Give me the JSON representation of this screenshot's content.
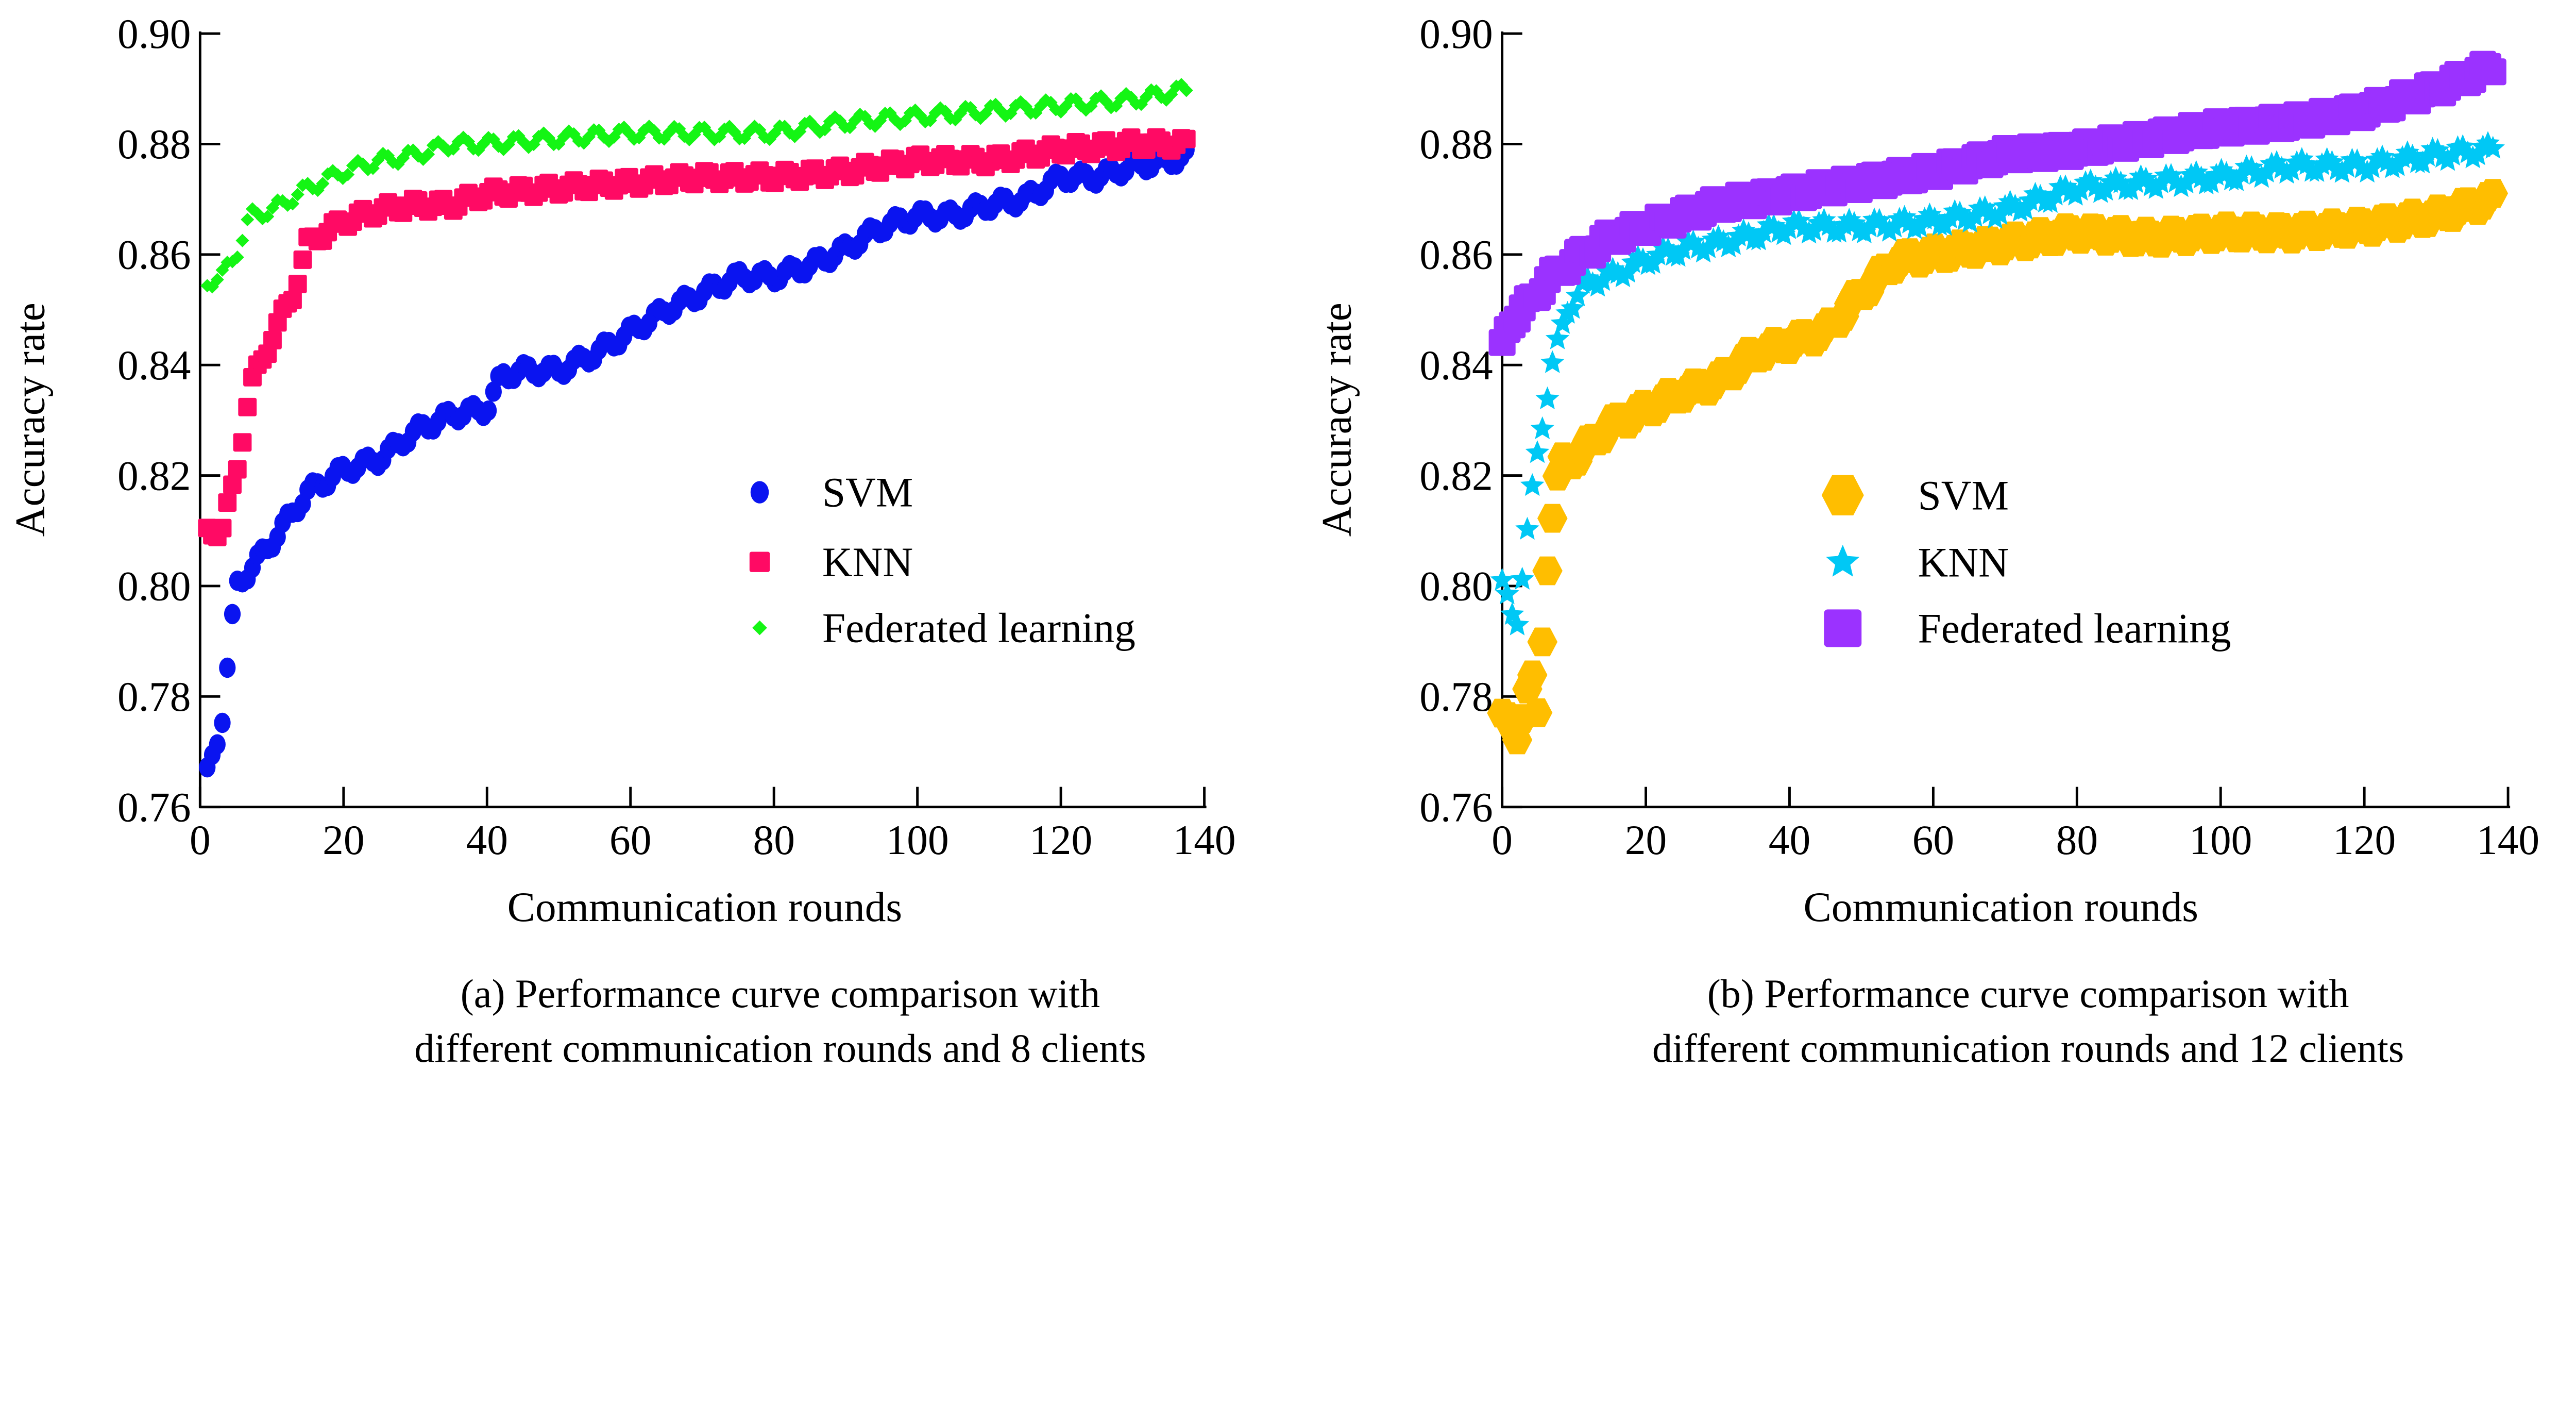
{
  "chart_data": [
    {
      "type": "scatter",
      "caption": [
        "(a) Performance curve comparison with",
        "different communication rounds and 8 clients"
      ],
      "xlabel": "Communication rounds",
      "ylabel": "Accuracy rate",
      "xlim": [
        0,
        140
      ],
      "ylim": [
        0.76,
        0.9
      ],
      "xticks": [
        "0",
        "20",
        "40",
        "60",
        "80",
        "100",
        "120",
        "140"
      ],
      "yticks": [
        "0.76",
        "0.78",
        "0.80",
        "0.82",
        "0.84",
        "0.86",
        "0.88",
        "0.90"
      ],
      "grid": false,
      "legend_position": "center-right",
      "series": [
        {
          "name": "SVM",
          "marker": "circle",
          "color": "#0a14f0",
          "x": [
            1,
            3,
            5,
            7,
            10,
            15,
            20,
            25,
            30,
            35,
            40,
            42,
            45,
            50,
            55,
            60,
            65,
            70,
            75,
            80,
            85,
            90,
            95,
            100,
            105,
            110,
            115,
            120,
            125,
            130,
            135,
            138
          ],
          "y": [
            0.766,
            0.775,
            0.8,
            0.803,
            0.808,
            0.817,
            0.821,
            0.823,
            0.828,
            0.831,
            0.832,
            0.838,
            0.839,
            0.839,
            0.842,
            0.846,
            0.85,
            0.853,
            0.856,
            0.856,
            0.858,
            0.861,
            0.865,
            0.867,
            0.867,
            0.869,
            0.87,
            0.874,
            0.874,
            0.876,
            0.877,
            0.878
          ]
        },
        {
          "name": "KNN",
          "marker": "square",
          "color": "#ff0a64",
          "x": [
            1,
            3,
            5,
            7,
            10,
            13,
            15,
            20,
            25,
            30,
            35,
            40,
            50,
            60,
            70,
            80,
            90,
            100,
            110,
            120,
            130,
            138
          ],
          "y": [
            0.81,
            0.81,
            0.82,
            0.836,
            0.845,
            0.853,
            0.862,
            0.866,
            0.868,
            0.869,
            0.869,
            0.871,
            0.872,
            0.873,
            0.874,
            0.874,
            0.875,
            0.877,
            0.877,
            0.879,
            0.88,
            0.88
          ]
        },
        {
          "name": "Federated learning",
          "marker": "diamond",
          "color": "#14f514",
          "x": [
            1,
            3,
            5,
            7,
            10,
            15,
            20,
            25,
            30,
            35,
            40,
            50,
            60,
            70,
            80,
            90,
            100,
            110,
            120,
            130,
            138
          ],
          "y": [
            0.855,
            0.856,
            0.86,
            0.867,
            0.868,
            0.872,
            0.875,
            0.877,
            0.878,
            0.88,
            0.88,
            0.881,
            0.882,
            0.882,
            0.882,
            0.884,
            0.885,
            0.886,
            0.887,
            0.888,
            0.89
          ]
        }
      ]
    },
    {
      "type": "scatter",
      "caption": [
        "(b) Performance curve comparison with",
        "different communication rounds and 12 clients"
      ],
      "xlabel": "Communication rounds",
      "ylabel": "Accuracy rate",
      "xlim": [
        0,
        140
      ],
      "ylim": [
        0.76,
        0.9
      ],
      "xticks": [
        "0",
        "20",
        "40",
        "60",
        "80",
        "100",
        "120",
        "140"
      ],
      "yticks": [
        "0.76",
        "0.78",
        "0.80",
        "0.82",
        "0.84",
        "0.86",
        "0.88",
        "0.90"
      ],
      "grid": false,
      "legend_position": "center-right",
      "series": [
        {
          "name": "SVM",
          "marker": "hexagon",
          "color": "#ffbe00",
          "x": [
            0,
            2,
            4,
            5,
            6,
            7,
            8,
            10,
            15,
            20,
            25,
            30,
            35,
            40,
            45,
            50,
            55,
            60,
            65,
            70,
            80,
            90,
            100,
            110,
            120,
            130,
            138
          ],
          "y": [
            0.777,
            0.772,
            0.785,
            0.775,
            0.8,
            0.813,
            0.822,
            0.823,
            0.829,
            0.832,
            0.835,
            0.837,
            0.842,
            0.844,
            0.846,
            0.853,
            0.859,
            0.86,
            0.861,
            0.862,
            0.864,
            0.863,
            0.864,
            0.864,
            0.865,
            0.867,
            0.87
          ]
        },
        {
          "name": "KNN",
          "marker": "star",
          "color": "#00c8f5",
          "x": [
            0,
            2,
            4,
            5,
            7,
            9,
            12,
            15,
            20,
            25,
            30,
            40,
            50,
            60,
            70,
            80,
            90,
            100,
            110,
            120,
            130,
            138
          ],
          "y": [
            0.8,
            0.793,
            0.815,
            0.825,
            0.84,
            0.85,
            0.855,
            0.856,
            0.859,
            0.861,
            0.862,
            0.865,
            0.865,
            0.866,
            0.868,
            0.872,
            0.873,
            0.874,
            0.876,
            0.876,
            0.878,
            0.879
          ]
        },
        {
          "name": "Federated learning",
          "marker": "square",
          "color": "#9b32ff",
          "x": [
            0,
            1,
            3,
            6,
            10,
            15,
            20,
            25,
            30,
            40,
            50,
            60,
            70,
            80,
            90,
            100,
            110,
            120,
            130,
            138
          ],
          "y": [
            0.843,
            0.848,
            0.85,
            0.855,
            0.859,
            0.863,
            0.865,
            0.867,
            0.869,
            0.871,
            0.873,
            0.875,
            0.878,
            0.879,
            0.881,
            0.883,
            0.884,
            0.886,
            0.89,
            0.894
          ]
        }
      ]
    }
  ]
}
